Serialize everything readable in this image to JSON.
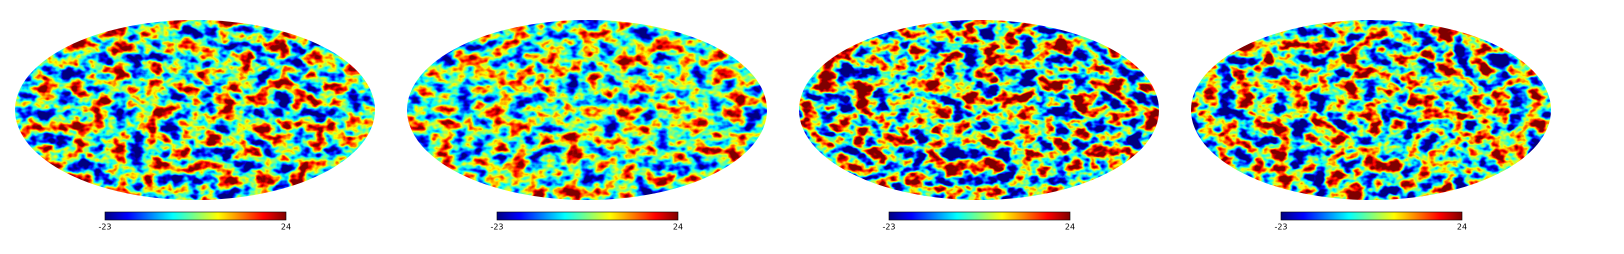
{
  "maps": [
    {
      "colorbar": {
        "min": -23,
        "max": 24
      }
    },
    {
      "colorbar": {
        "min": -23,
        "max": 24
      }
    },
    {
      "colorbar": {
        "min": -23,
        "max": 24
      }
    },
    {
      "colorbar": {
        "min": -23,
        "max": 24
      }
    }
  ]
}
